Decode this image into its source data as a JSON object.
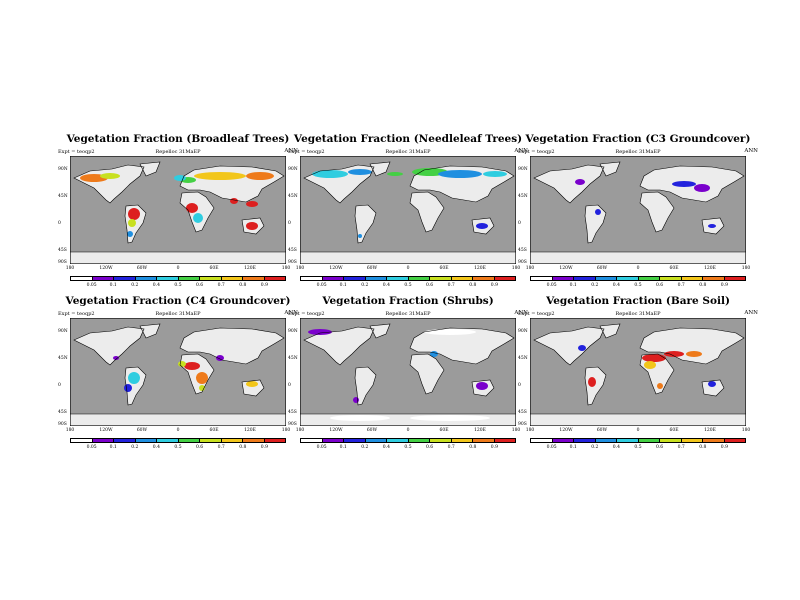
{
  "figure": {
    "expt_label": "Expt = teoqp2",
    "replica_label": "Repelloc 31MaEP",
    "period_label": "ANN",
    "colors": {
      "ocean": "#9b9b9b",
      "land": "#ececec",
      "outline": "#000000",
      "palette": [
        "#ffffff",
        "#7a00cc",
        "#2222dd",
        "#1f8fe0",
        "#2fcde0",
        "#44d044",
        "#c8e020",
        "#f2c61a",
        "#ee7a1a",
        "#dd1f1f"
      ]
    }
  },
  "axes": {
    "lat_ticks": [
      "90N",
      "45N",
      "0",
      "45S",
      "90S"
    ],
    "lon_ticks": [
      "180",
      "120W",
      "60W",
      "0",
      "60E",
      "120E",
      "180"
    ],
    "colorbar_ticks": [
      "0.05",
      "0.1",
      "0.2",
      "0.4",
      "0.5",
      "0.6",
      "0.7",
      "0.8",
      "0.9"
    ]
  },
  "panels": [
    {
      "title": "Vegetation Fraction (Broadleaf Trees)"
    },
    {
      "title": "Vegetation Fraction (Needleleaf Trees)"
    },
    {
      "title": "Vegetation Fraction (C3 Groundcover)"
    },
    {
      "title": "Vegetation Fraction (C4 Groundcover)"
    },
    {
      "title": "Vegetation Fraction (Shrubs)"
    },
    {
      "title": "Vegetation Fraction (Bare Soil)"
    }
  ]
}
